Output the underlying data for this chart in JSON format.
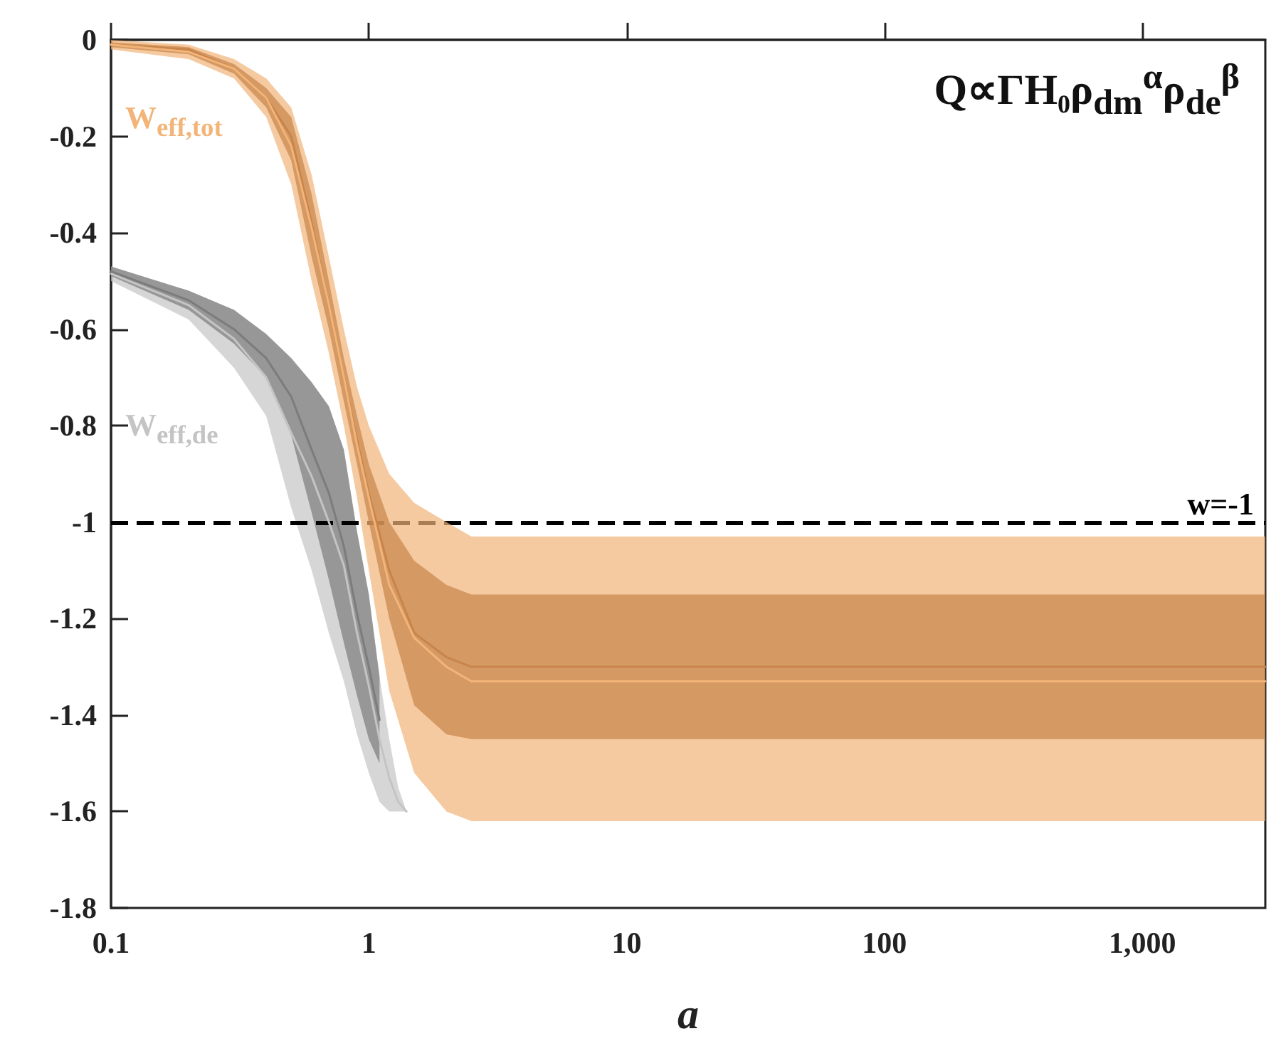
{
  "chart_data": {
    "type": "line",
    "title": "Q∝ΓH₀ρ$_{dm}$$^{α}$ρ$_{de}$$^{β}$",
    "xlabel": "a",
    "series": [
      {
        "name": "W$_{eff,de}$",
        "color": "#c4c4c4",
        "x": [
          0.1,
          0.2,
          0.3,
          0.4,
          0.5,
          0.6,
          0.7,
          0.8,
          0.9,
          1,
          1.1,
          1.2,
          1.3,
          1.4
        ],
        "values": [
          -0.485,
          -0.55,
          -0.62,
          -0.7,
          -0.815,
          -0.905,
          -1.0,
          -1.09,
          -1.23,
          -1.34,
          -1.45,
          -1.53,
          -1.58,
          -1.6
        ],
        "lower": [
          -0.5,
          -0.58,
          -0.68,
          -0.78,
          -0.97,
          -1.1,
          -1.23,
          -1.33,
          -1.44,
          -1.52,
          -1.58,
          -1.6,
          -1.6,
          -1.6
        ],
        "upper": [
          -0.47,
          -0.52,
          -0.56,
          -0.61,
          -0.66,
          -0.71,
          -0.76,
          -0.85,
          -1.02,
          -1.15,
          -1.32,
          -1.45,
          -1.55,
          -1.6
        ]
      },
      {
        "color": "#7c7c7c",
        "x": [
          0.1,
          0.2,
          0.3,
          0.4,
          0.5,
          0.6,
          0.7,
          0.8,
          0.9,
          1,
          1.1
        ],
        "values": [
          -0.48,
          -0.54,
          -0.6,
          -0.66,
          -0.74,
          -0.85,
          -0.94,
          -1.05,
          -1.19,
          -1.3,
          -1.41
        ],
        "lower": [
          -0.49,
          -0.56,
          -0.63,
          -0.7,
          -0.82,
          -0.98,
          -1.12,
          -1.25,
          -1.36,
          -1.45,
          -1.5
        ],
        "upper": [
          -0.47,
          -0.52,
          -0.56,
          -0.61,
          -0.66,
          -0.71,
          -0.76,
          -0.85,
          -1.02,
          -1.15,
          -1.32
        ]
      },
      {
        "name": "W$_{eff,tot}$",
        "color": "#f2b478",
        "x": [
          0.1,
          0.2,
          0.3,
          0.4,
          0.5,
          0.6,
          0.7,
          0.8,
          0.9,
          1,
          1.2,
          1.5,
          2,
          2.5,
          3,
          5,
          10,
          100,
          1000,
          3000
        ],
        "values": [
          -0.01,
          -0.025,
          -0.06,
          -0.12,
          -0.22,
          -0.39,
          -0.55,
          -0.7,
          -0.84,
          -0.95,
          -1.13,
          -1.24,
          -1.3,
          -1.33,
          -1.33,
          -1.33,
          -1.33,
          -1.33,
          -1.33,
          -1.33
        ],
        "lower": [
          -0.02,
          -0.04,
          -0.08,
          -0.16,
          -0.3,
          -0.5,
          -0.65,
          -0.8,
          -0.95,
          -1.1,
          -1.35,
          -1.52,
          -1.6,
          -1.62,
          -1.62,
          -1.62,
          -1.62,
          -1.62,
          -1.62,
          -1.62
        ],
        "upper": [
          0,
          -0.01,
          -0.04,
          -0.08,
          -0.14,
          -0.28,
          -0.45,
          -0.6,
          -0.72,
          -0.8,
          -0.9,
          -0.96,
          -1.0,
          -1.03,
          -1.03,
          -1.03,
          -1.03,
          -1.03,
          -1.03,
          -1.03
        ]
      },
      {
        "color": "#c8844a",
        "x": [
          0.1,
          0.2,
          0.3,
          0.4,
          0.5,
          0.6,
          0.7,
          0.8,
          0.9,
          1,
          1.2,
          1.5,
          2,
          2.5,
          3,
          5,
          10,
          100,
          1000,
          3000
        ],
        "values": [
          -0.01,
          -0.02,
          -0.06,
          -0.12,
          -0.2,
          -0.38,
          -0.55,
          -0.7,
          -0.83,
          -0.94,
          -1.1,
          -1.23,
          -1.28,
          -1.3,
          -1.3,
          -1.3,
          -1.3,
          -1.3,
          -1.3,
          -1.3
        ],
        "lower": [
          -0.015,
          -0.03,
          -0.07,
          -0.14,
          -0.25,
          -0.45,
          -0.6,
          -0.75,
          -0.88,
          -1.0,
          -1.2,
          -1.38,
          -1.44,
          -1.45,
          -1.45,
          -1.45,
          -1.45,
          -1.45,
          -1.45,
          -1.45
        ],
        "upper": [
          -0.005,
          -0.015,
          -0.05,
          -0.1,
          -0.16,
          -0.32,
          -0.5,
          -0.66,
          -0.78,
          -0.88,
          -1.0,
          -1.08,
          -1.13,
          -1.15,
          -1.15,
          -1.15,
          -1.15,
          -1.15,
          -1.15,
          -1.15
        ]
      }
    ],
    "log": "x",
    "xlim": [
      0.1,
      3000
    ],
    "xticks": [
      0.1,
      1,
      10,
      100,
      {
        "value": 1000,
        "label": "1,000"
      }
    ],
    "ylim": [
      -1.8,
      0
    ],
    "yticks": [
      -1.8,
      -1.6,
      -1.4,
      -1.2,
      -1,
      -0.8,
      -0.6,
      -0.4,
      -0.2,
      0
    ],
    "ref_lines": [
      {
        "axis": "y",
        "value": -1,
        "label": "w=-1",
        "color": "#000000",
        "line_style": "dashed"
      }
    ],
    "grid": false
  }
}
